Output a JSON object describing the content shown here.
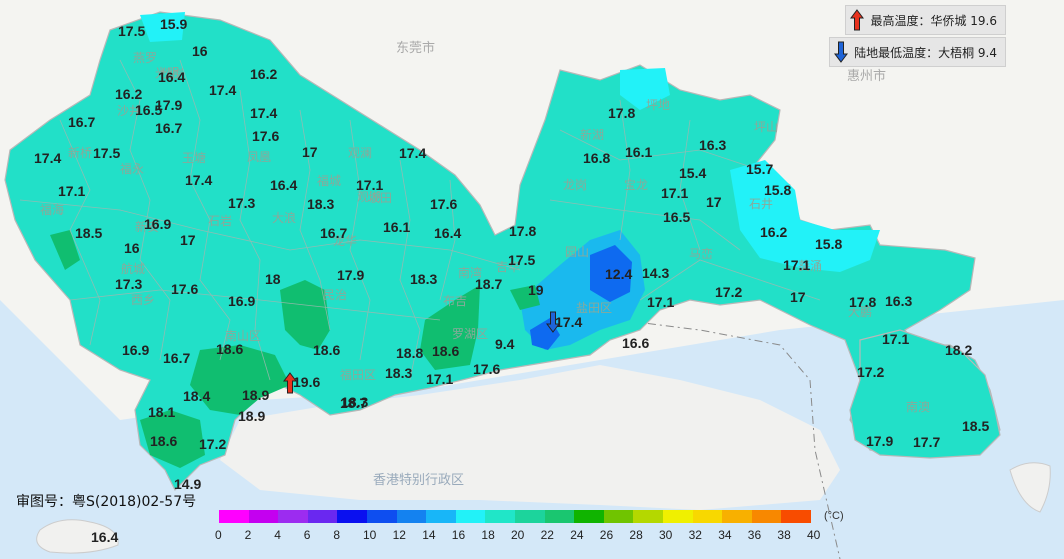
{
  "legend": {
    "max_label": "最高温度：华侨城 19.6",
    "min_label": "陆地最低温度：大梧桐 9.4",
    "max_color": "#e8321e",
    "min_color": "#1e64d8"
  },
  "approval": "审图号：粤S(2018)02-57号",
  "unit": "(°C)",
  "cities": {
    "dongguan": "东莞市",
    "huizhou": "惠州市",
    "hongkong": "香港特别行政区"
  },
  "scale": {
    "colors": [
      "#ff00ff",
      "#c400f0",
      "#9c2cf0",
      "#6a28f0",
      "#0a10f0",
      "#0e4ef0",
      "#1482f0",
      "#18b6f8",
      "#22f2f8",
      "#20e6c8",
      "#1cd49c",
      "#1ac670",
      "#10b400",
      "#70c400",
      "#b4d800",
      "#f0f000",
      "#f8d800",
      "#f8b000",
      "#f88800",
      "#f84c00",
      "#f00000",
      "#d00000",
      "#a80000"
    ],
    "ticks": [
      "0",
      "2",
      "4",
      "6",
      "8",
      "10",
      "12",
      "14",
      "16",
      "18",
      "20",
      "22",
      "24",
      "26",
      "28",
      "30",
      "32",
      "34",
      "36",
      "38",
      "40"
    ]
  },
  "districts": [
    "燕罗",
    "松岗",
    "沙井",
    "新桥",
    "福海",
    "福永",
    "新安",
    "西乡",
    "航城",
    "石岩",
    "大浪",
    "龙华",
    "民治",
    "坂田",
    "观澜",
    "福城",
    "观湖",
    "南湾",
    "吉华",
    "园山",
    "坪地",
    "龙岗",
    "宝龙",
    "坪山",
    "石井",
    "葵涌",
    "大鹏",
    "南澳",
    "盐田区",
    "南山区",
    "福田区",
    "罗湖区",
    "布吉",
    "马峦",
    "光明",
    "凤凰",
    "新湖",
    "玉塘"
  ],
  "stations": [
    "17.5",
    "15.9",
    "16",
    "16.4",
    "16.2",
    "17.4",
    "16.2",
    "17.9",
    "16.7",
    "17.4",
    "17.6",
    "16.7",
    "17.4",
    "17.5",
    "17",
    "17.4",
    "17.1",
    "17.4",
    "16.4",
    "17.3",
    "18.3",
    "17.1",
    "17.6",
    "16.5",
    "16.9",
    "17",
    "16.7",
    "16.1",
    "16.4",
    "18.5",
    "16",
    "17.3",
    "17.6",
    "18",
    "17.9",
    "18.3",
    "18.7",
    "17.8",
    "17.5",
    "12.4",
    "14.3",
    "19",
    "16.9",
    "18.6",
    "18.6",
    "18.8",
    "18.6",
    "16.9",
    "16.7",
    "19.6",
    "18.4",
    "18.9",
    "18.3",
    "18.3",
    "17.1",
    "17.6",
    "9.4",
    "17.4",
    "17.1",
    "17.2",
    "17",
    "16.6",
    "17.8",
    "16.3",
    "17.1",
    "18.2",
    "17.2",
    "18.1",
    "18.9",
    "18.7",
    "18.6",
    "17.2",
    "17.9",
    "17.7",
    "18.5",
    "14.9",
    "16.4",
    "17.8",
    "16.8",
    "16.1",
    "16.3",
    "17.1",
    "17",
    "16.5",
    "15.4",
    "15.7",
    "15.8",
    "16.2",
    "15.8",
    "17.1"
  ],
  "map_data": {
    "extreme_max": {
      "station": "华侨城",
      "value": 19.6
    },
    "extreme_min": {
      "station": "大梧桐",
      "value": 9.4
    }
  }
}
